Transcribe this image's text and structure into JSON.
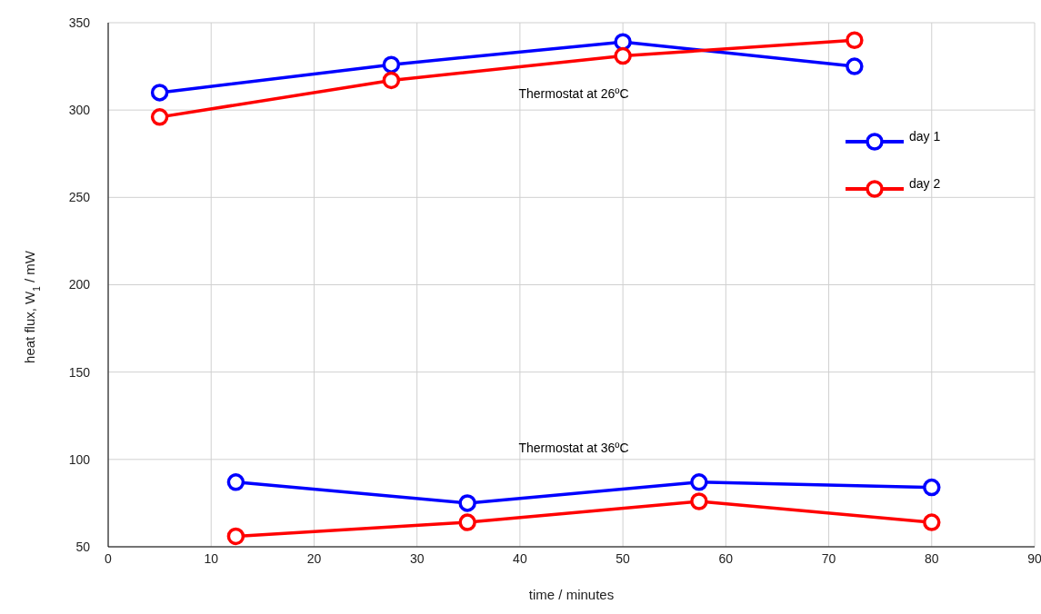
{
  "chart_data": {
    "type": "line",
    "xlabel": "time / minutes",
    "ylabel": "heat flux, W$_{1}$ / mW",
    "xlim": [
      0,
      90
    ],
    "xticks": [
      0,
      10,
      20,
      30,
      40,
      50,
      60,
      70,
      80,
      90
    ],
    "ylim": [
      50,
      350
    ],
    "yticks": [
      50,
      100,
      150,
      200,
      250,
      300,
      350
    ],
    "grid": true,
    "legend": "top right",
    "marker": "circle",
    "line_style": "solid",
    "series": [
      {
        "name": "day 1",
        "color": "#0000ff",
        "x": [
          5,
          27.5,
          50,
          72.5
        ],
        "values": [
          310,
          326,
          339,
          325
        ]
      },
      {
        "name": "day 2",
        "color": "#ff0000",
        "x": [
          5,
          27.5,
          50,
          72.5
        ],
        "values": [
          296,
          317,
          331,
          340
        ]
      },
      {
        "color": "#0000ff",
        "x": [
          12.4,
          34.9,
          57.4,
          80
        ],
        "values": [
          87,
          75,
          87,
          84
        ]
      },
      {
        "color": "#ff0000",
        "x": [
          12.4,
          34.9,
          57.4,
          80
        ],
        "values": [
          56,
          64,
          76,
          64
        ]
      }
    ],
    "annotations": [
      "Thermostat at 26ºC",
      "Thermostat at 36ºC"
    ]
  }
}
